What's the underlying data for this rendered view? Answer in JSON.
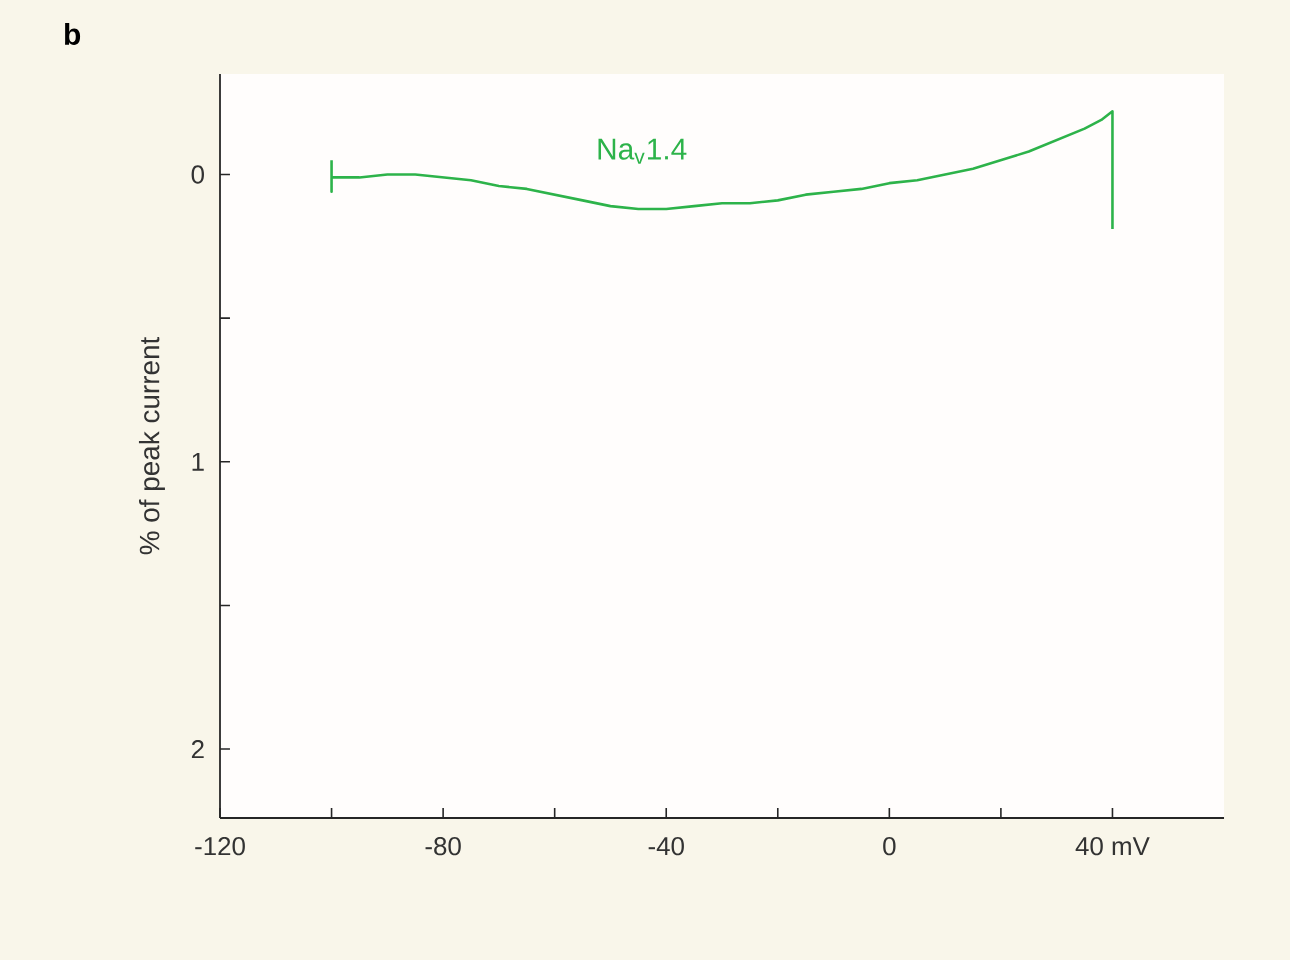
{
  "chart_data": {
    "type": "line",
    "ylabel": "% of peak current",
    "annotations": [
      "b"
    ],
    "xlim": [
      -120,
      60
    ],
    "ylim": [
      2.24,
      -0.35
    ],
    "xticks": [
      -120,
      {
        "value": -100,
        "label": null
      },
      -80,
      {
        "value": -60,
        "label": null
      },
      -40,
      {
        "value": -20,
        "label": null
      },
      0,
      {
        "value": 20,
        "label": null
      },
      {
        "value": 40,
        "label": "40 mV"
      }
    ],
    "yticks": [
      0,
      {
        "value": 0.5,
        "label": null
      },
      1,
      {
        "value": 1.5,
        "label": null
      },
      2
    ],
    "series": [
      {
        "name": "Na$_{v}$1.4",
        "color": "#2db34a",
        "x": [
          -100,
          -100,
          -100,
          -95,
          -90,
          -85,
          -80,
          -75,
          -70,
          -65,
          -60,
          -55,
          -50,
          -45,
          -40,
          -35,
          -30,
          -25,
          -20,
          -15,
          -10,
          -5,
          0,
          5,
          10,
          15,
          20,
          25,
          30,
          35,
          38,
          40,
          40
        ],
        "values": [
          -0.05,
          0.06,
          0.01,
          0.01,
          0.0,
          0.0,
          0.01,
          0.02,
          0.04,
          0.05,
          0.07,
          0.09,
          0.11,
          0.12,
          0.12,
          0.11,
          0.1,
          0.1,
          0.09,
          0.07,
          0.06,
          0.05,
          0.03,
          0.02,
          0.0,
          -0.02,
          -0.05,
          -0.08,
          -0.12,
          -0.16,
          -0.19,
          -0.22,
          0.19
        ]
      }
    ]
  }
}
